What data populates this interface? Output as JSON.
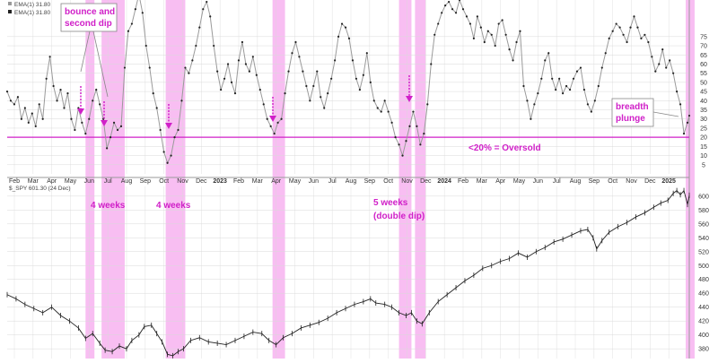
{
  "colors": {
    "band": "#f5a8ee",
    "accent": "#d020c8",
    "series": "#222222",
    "line_grey": "#9a9a9a",
    "grid": "#d9d9d9"
  },
  "legend": {
    "lines": [
      "EMA(1) 31.80",
      "EMA(1) 31.80"
    ],
    "spy": "$_SPY 601.30 (24 Dec)"
  },
  "annotations": {
    "bounce": [
      "bounce and",
      "second dip"
    ],
    "weeks1": "4 weeks",
    "weeks2": "4 weeks",
    "weeks3": [
      "5 weeks",
      "(double dip)"
    ],
    "breadth": [
      "breadth",
      "plunge"
    ],
    "oversold": "<20% = Oversold"
  },
  "chart_data": [
    {
      "type": "line",
      "series": [
        {
          "name": "EMA(1)",
          "last": 31.8
        }
      ],
      "y_ticks": [
        5,
        10,
        15,
        20,
        25,
        30,
        35,
        40,
        45,
        50,
        55,
        60,
        65,
        70,
        75
      ],
      "ylim": [
        0,
        95
      ],
      "threshold": 20,
      "x_labels": [
        "Feb",
        "Mar",
        "Apr",
        "May",
        "Jun",
        "Jul",
        "Aug",
        "Sep",
        "Oct",
        "Nov",
        "Dec",
        "2023",
        "Feb",
        "Mar",
        "Apr",
        "May",
        "Jun",
        "Jul",
        "Aug",
        "Sep",
        "Oct",
        "Nov",
        "Dec",
        "2024",
        "Feb",
        "Mar",
        "Apr",
        "May",
        "Jun",
        "Jul",
        "Aug",
        "Sep",
        "Oct",
        "Nov",
        "Dec",
        "2025"
      ],
      "points": [
        [
          0,
          45
        ],
        [
          4,
          40
        ],
        [
          8,
          38
        ],
        [
          12,
          42
        ],
        [
          16,
          30
        ],
        [
          20,
          36
        ],
        [
          24,
          28
        ],
        [
          28,
          33
        ],
        [
          32,
          26
        ],
        [
          36,
          38
        ],
        [
          40,
          30
        ],
        [
          44,
          52
        ],
        [
          48,
          64
        ],
        [
          52,
          48
        ],
        [
          56,
          40
        ],
        [
          60,
          46
        ],
        [
          64,
          36
        ],
        [
          68,
          44
        ],
        [
          72,
          30
        ],
        [
          76,
          24
        ],
        [
          80,
          36
        ],
        [
          84,
          28
        ],
        [
          88,
          22
        ],
        [
          92,
          30
        ],
        [
          96,
          40
        ],
        [
          100,
          46
        ],
        [
          104,
          38
        ],
        [
          108,
          30
        ],
        [
          112,
          14
        ],
        [
          116,
          20
        ],
        [
          120,
          28
        ],
        [
          124,
          24
        ],
        [
          128,
          26
        ],
        [
          132,
          58
        ],
        [
          136,
          78
        ],
        [
          140,
          82
        ],
        [
          144,
          90
        ],
        [
          148,
          98
        ],
        [
          152,
          88
        ],
        [
          156,
          70
        ],
        [
          160,
          58
        ],
        [
          164,
          44
        ],
        [
          168,
          36
        ],
        [
          172,
          24
        ],
        [
          176,
          12
        ],
        [
          180,
          6
        ],
        [
          184,
          10
        ],
        [
          188,
          20
        ],
        [
          192,
          24
        ],
        [
          196,
          40
        ],
        [
          200,
          58
        ],
        [
          204,
          55
        ],
        [
          208,
          62
        ],
        [
          212,
          70
        ],
        [
          216,
          80
        ],
        [
          220,
          90
        ],
        [
          224,
          94
        ],
        [
          228,
          86
        ],
        [
          232,
          70
        ],
        [
          236,
          56
        ],
        [
          240,
          46
        ],
        [
          244,
          52
        ],
        [
          248,
          60
        ],
        [
          252,
          50
        ],
        [
          256,
          44
        ],
        [
          260,
          62
        ],
        [
          264,
          72
        ],
        [
          268,
          60
        ],
        [
          272,
          56
        ],
        [
          276,
          64
        ],
        [
          280,
          54
        ],
        [
          284,
          46
        ],
        [
          288,
          38
        ],
        [
          292,
          30
        ],
        [
          296,
          26
        ],
        [
          300,
          22
        ],
        [
          304,
          28
        ],
        [
          308,
          30
        ],
        [
          312,
          44
        ],
        [
          316,
          56
        ],
        [
          320,
          66
        ],
        [
          324,
          72
        ],
        [
          328,
          64
        ],
        [
          332,
          56
        ],
        [
          336,
          48
        ],
        [
          340,
          40
        ],
        [
          344,
          48
        ],
        [
          348,
          56
        ],
        [
          352,
          42
        ],
        [
          356,
          36
        ],
        [
          360,
          44
        ],
        [
          364,
          52
        ],
        [
          368,
          62
        ],
        [
          372,
          75
        ],
        [
          376,
          82
        ],
        [
          380,
          80
        ],
        [
          384,
          74
        ],
        [
          388,
          62
        ],
        [
          392,
          52
        ],
        [
          396,
          46
        ],
        [
          400,
          54
        ],
        [
          404,
          66
        ],
        [
          408,
          50
        ],
        [
          412,
          40
        ],
        [
          416,
          36
        ],
        [
          420,
          34
        ],
        [
          424,
          40
        ],
        [
          428,
          34
        ],
        [
          432,
          28
        ],
        [
          436,
          20
        ],
        [
          440,
          16
        ],
        [
          444,
          10
        ],
        [
          448,
          18
        ],
        [
          452,
          26
        ],
        [
          456,
          34
        ],
        [
          460,
          26
        ],
        [
          464,
          16
        ],
        [
          468,
          22
        ],
        [
          472,
          38
        ],
        [
          476,
          60
        ],
        [
          480,
          76
        ],
        [
          484,
          82
        ],
        [
          488,
          88
        ],
        [
          492,
          92
        ],
        [
          496,
          94
        ],
        [
          500,
          90
        ],
        [
          504,
          88
        ],
        [
          508,
          95
        ],
        [
          512,
          90
        ],
        [
          516,
          86
        ],
        [
          520,
          82
        ],
        [
          524,
          74
        ],
        [
          528,
          86
        ],
        [
          532,
          80
        ],
        [
          536,
          72
        ],
        [
          540,
          78
        ],
        [
          544,
          76
        ],
        [
          548,
          70
        ],
        [
          552,
          82
        ],
        [
          556,
          84
        ],
        [
          560,
          76
        ],
        [
          564,
          68
        ],
        [
          568,
          62
        ],
        [
          572,
          72
        ],
        [
          576,
          78
        ],
        [
          580,
          48
        ],
        [
          584,
          40
        ],
        [
          588,
          30
        ],
        [
          592,
          38
        ],
        [
          596,
          44
        ],
        [
          600,
          52
        ],
        [
          604,
          62
        ],
        [
          608,
          66
        ],
        [
          612,
          52
        ],
        [
          616,
          46
        ],
        [
          620,
          52
        ],
        [
          624,
          44
        ],
        [
          628,
          48
        ],
        [
          632,
          46
        ],
        [
          636,
          52
        ],
        [
          640,
          56
        ],
        [
          644,
          58
        ],
        [
          648,
          46
        ],
        [
          652,
          38
        ],
        [
          656,
          34
        ],
        [
          660,
          40
        ],
        [
          664,
          48
        ],
        [
          668,
          58
        ],
        [
          672,
          66
        ],
        [
          676,
          74
        ],
        [
          680,
          78
        ],
        [
          684,
          82
        ],
        [
          688,
          80
        ],
        [
          692,
          76
        ],
        [
          696,
          72
        ],
        [
          700,
          80
        ],
        [
          704,
          86
        ],
        [
          708,
          80
        ],
        [
          712,
          74
        ],
        [
          716,
          76
        ],
        [
          720,
          72
        ],
        [
          724,
          64
        ],
        [
          728,
          56
        ],
        [
          732,
          60
        ],
        [
          736,
          68
        ],
        [
          740,
          58
        ],
        [
          744,
          62
        ],
        [
          748,
          55
        ],
        [
          752,
          45
        ],
        [
          756,
          38
        ],
        [
          760,
          22
        ],
        [
          764,
          28
        ],
        [
          766,
          31.8
        ]
      ],
      "bands": [
        [
          88,
          98
        ],
        [
          106,
          132
        ],
        [
          178,
          200
        ],
        [
          298,
          312
        ],
        [
          440,
          454
        ],
        [
          458,
          470
        ],
        [
          762,
          772
        ]
      ]
    },
    {
      "type": "line",
      "series": [
        {
          "name": "$_SPY",
          "last": 601.3
        }
      ],
      "y_ticks": [
        380,
        400,
        420,
        440,
        460,
        480,
        500,
        520,
        540,
        560,
        580,
        600
      ],
      "ylim": [
        366,
        614
      ],
      "points": [
        [
          0,
          458
        ],
        [
          10,
          452
        ],
        [
          20,
          444
        ],
        [
          30,
          438
        ],
        [
          40,
          432
        ],
        [
          50,
          440
        ],
        [
          60,
          428
        ],
        [
          70,
          420
        ],
        [
          80,
          410
        ],
        [
          88,
          395
        ],
        [
          96,
          402
        ],
        [
          104,
          388
        ],
        [
          110,
          378
        ],
        [
          118,
          376
        ],
        [
          126,
          384
        ],
        [
          134,
          380
        ],
        [
          140,
          392
        ],
        [
          148,
          400
        ],
        [
          154,
          412
        ],
        [
          162,
          414
        ],
        [
          168,
          402
        ],
        [
          174,
          390
        ],
        [
          180,
          372
        ],
        [
          186,
          370
        ],
        [
          192,
          376
        ],
        [
          198,
          380
        ],
        [
          206,
          392
        ],
        [
          216,
          396
        ],
        [
          226,
          390
        ],
        [
          236,
          388
        ],
        [
          246,
          386
        ],
        [
          256,
          392
        ],
        [
          266,
          398
        ],
        [
          276,
          404
        ],
        [
          286,
          402
        ],
        [
          294,
          392
        ],
        [
          302,
          386
        ],
        [
          310,
          396
        ],
        [
          320,
          402
        ],
        [
          330,
          410
        ],
        [
          340,
          414
        ],
        [
          350,
          418
        ],
        [
          360,
          424
        ],
        [
          370,
          432
        ],
        [
          380,
          438
        ],
        [
          390,
          444
        ],
        [
          400,
          448
        ],
        [
          408,
          452
        ],
        [
          414,
          446
        ],
        [
          424,
          444
        ],
        [
          432,
          440
        ],
        [
          440,
          432
        ],
        [
          448,
          428
        ],
        [
          454,
          432
        ],
        [
          460,
          420
        ],
        [
          466,
          416
        ],
        [
          474,
          432
        ],
        [
          484,
          448
        ],
        [
          494,
          458
        ],
        [
          504,
          468
        ],
        [
          514,
          478
        ],
        [
          524,
          486
        ],
        [
          534,
          496
        ],
        [
          544,
          500
        ],
        [
          554,
          506
        ],
        [
          564,
          510
        ],
        [
          574,
          518
        ],
        [
          584,
          512
        ],
        [
          594,
          520
        ],
        [
          604,
          526
        ],
        [
          614,
          534
        ],
        [
          624,
          538
        ],
        [
          634,
          544
        ],
        [
          644,
          550
        ],
        [
          652,
          552
        ],
        [
          658,
          540
        ],
        [
          662,
          524
        ],
        [
          668,
          536
        ],
        [
          676,
          548
        ],
        [
          686,
          556
        ],
        [
          696,
          562
        ],
        [
          706,
          570
        ],
        [
          716,
          576
        ],
        [
          726,
          584
        ],
        [
          734,
          590
        ],
        [
          742,
          594
        ],
        [
          748,
          604
        ],
        [
          752,
          608
        ],
        [
          756,
          602
        ],
        [
          760,
          608
        ],
        [
          764,
          588
        ],
        [
          766,
          601.3
        ]
      ]
    }
  ]
}
